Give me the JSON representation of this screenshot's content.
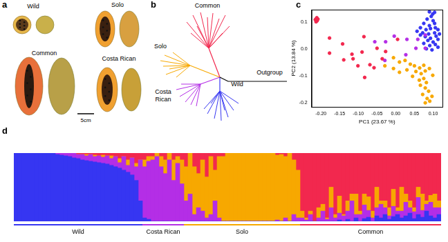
{
  "panels": {
    "a": {
      "label": "a",
      "photos": [
        {
          "label": "Wild"
        },
        {
          "label": "Solo"
        },
        {
          "label": "Common"
        },
        {
          "label": "Costa Rican"
        }
      ],
      "scale_bar": "5cm"
    },
    "b": {
      "label": "b",
      "clades": [
        {
          "label": "Common",
          "color": "#f2284e"
        },
        {
          "label": "Solo",
          "color": "#f7a800"
        },
        {
          "label": "Costa Rican",
          "color": "#b42ee6"
        },
        {
          "label": "Wild",
          "color": "#3636f2"
        },
        {
          "label": "Outgroup",
          "color": "#000000"
        }
      ]
    }
  },
  "chart_data": [
    {
      "type": "scatter",
      "title": "c",
      "x_label": "PC1 (23.67 %)",
      "y_label": "PC2 (13.84 %)",
      "xlim": [
        -0.225,
        0.125
      ],
      "xticks": [
        {
          "value": -0.2,
          "label": "-0.20"
        },
        -0.15,
        {
          "value": -0.1,
          "label": "-0.10"
        },
        -0.05,
        {
          "value": 0,
          "label": "0.00"
        },
        0.05,
        {
          "value": 0.1,
          "label": "0.10"
        }
      ],
      "ylim": [
        -0.215,
        0.145
      ],
      "yticks": [
        -0.2,
        -0.1,
        {
          "value": 0,
          "label": "0.0"
        },
        0.1
      ],
      "grid": false,
      "marker": "circle",
      "series": [
        {
          "color": "#f2284e",
          "x": [
            -0.215,
            -0.212,
            -0.21,
            -0.213,
            -0.208,
            -0.211,
            -0.177,
            -0.142,
            -0.177,
            -0.139,
            -0.114,
            -0.09,
            -0.085,
            -0.117,
            -0.058,
            -0.036,
            -0.069,
            -0.101,
            -0.083,
            -0.05,
            -0.027,
            0.005
          ],
          "values": [
            0.108,
            0.112,
            0.104,
            0.1,
            0.11,
            0.115,
            0.04,
            0.018,
            -0.016,
            -0.041,
            -0.037,
            -0.012,
            0.045,
            -0.02,
            -0.07,
            -0.037,
            -0.059,
            -0.063,
            -0.106,
            0.002,
            -0.01,
            0.035
          ]
        },
        {
          "color": "#b42ee6",
          "x": [
            -0.056,
            -0.027,
            -0.004,
            0.027,
            0.054,
            0.059,
            0.079,
            0.079,
            -0.029,
            0.03
          ],
          "values": [
            0.026,
            0.026,
            0.047,
            -0.022,
            0.002,
            0.035,
            0.051,
            0.002,
            -0.043,
            0.035
          ]
        },
        {
          "color": "#f7a800",
          "x": [
            -0.006,
            0.01,
            0.025,
            0.039,
            0.05,
            0.064,
            0.075,
            0.03,
            0.054,
            0.068,
            0.079,
            0.045,
            0.063,
            0.075,
            0.082,
            0.066,
            0.079,
            0.088,
            0.072,
            0.084,
            0.079,
            0.091,
            0.097,
            -0.006,
            0.01,
            -0.029,
            0.099,
            0.09
          ],
          "values": [
            -0.033,
            -0.049,
            -0.043,
            -0.057,
            -0.063,
            -0.071,
            -0.061,
            -0.078,
            -0.084,
            -0.092,
            -0.082,
            -0.102,
            -0.116,
            -0.11,
            -0.125,
            -0.135,
            -0.145,
            -0.157,
            -0.169,
            -0.184,
            -0.2,
            -0.194,
            -0.176,
            -0.073,
            -0.087,
            -0.063,
            -0.098,
            -0.073
          ]
        },
        {
          "color": "#3636f2",
          "x": [
            0.09,
            0.099,
            0.104,
            0.095,
            0.084,
            0.1,
            0.075,
            0.09,
            0.104,
            0.066,
            0.081,
            0.093,
            0.106,
            0.057,
            0.072,
            0.088,
            0.104,
            0.113,
            0.079,
            0.093,
            0.108,
            0.066,
            0.086,
            0.1,
            0.113,
            0.075,
            0.091,
            0.106,
            0.082,
            0.097,
            0.113,
            0.117
          ],
          "values": [
            0.137,
            0.129,
            0.135,
            0.12,
            0.11,
            0.104,
            0.094,
            0.086,
            0.094,
            0.078,
            0.071,
            0.075,
            0.078,
            0.065,
            0.059,
            0.055,
            0.059,
            0.071,
            0.045,
            0.039,
            0.047,
            0.051,
            0.031,
            0.025,
            0.035,
            0.02,
            0.012,
            0.016,
            0,
            -0.004,
            0.006,
            0.055
          ]
        }
      ]
    },
    {
      "type": "bar",
      "title": "d",
      "stacked": true,
      "tick_labels": false,
      "grid": false,
      "ylim": [
        0,
        1
      ],
      "groups": [
        {
          "name": "Wild",
          "count": 31,
          "color": "#3636f2"
        },
        {
          "name": "Costa Rican",
          "count": 10,
          "color": "#b42ee6"
        },
        {
          "name": "Solo",
          "count": 28,
          "color": "#f7a800"
        },
        {
          "name": "Common",
          "count": 34,
          "color": "#f2284e"
        }
      ],
      "series": [
        {
          "color": "#3636f2",
          "values": [
            1,
            1,
            1,
            1,
            1,
            1,
            1,
            1,
            1,
            1,
            0.98,
            0.97,
            0.96,
            0.95,
            0.93,
            0.92,
            0.9,
            0.89,
            0.88,
            0.87,
            0.86,
            0.85,
            0.84,
            0.82,
            0.8,
            0.78,
            0.75,
            0.72,
            0.68,
            0.6,
            0.3,
            0.05,
            0.03,
            0,
            0,
            0,
            0,
            0,
            0,
            0,
            0,
            0,
            0,
            0,
            0,
            0,
            0,
            0,
            0,
            0,
            0,
            0,
            0,
            0,
            0,
            0,
            0,
            0,
            0,
            0,
            0,
            0,
            0,
            0,
            0,
            0,
            0,
            0,
            0,
            0,
            0,
            0,
            0,
            0,
            0,
            0,
            0,
            0,
            0.02,
            0,
            0.03,
            0,
            0.05,
            0,
            0.04,
            0.06,
            0,
            0.08,
            0.05,
            0.1,
            0.03,
            0.07,
            0.1,
            0.05,
            0.08,
            0.12,
            0.04,
            0.1,
            0.06,
            0.15,
            0.08,
            0.05,
            0.1
          ]
        },
        {
          "color": "#b42ee6",
          "values": [
            0,
            0,
            0,
            0,
            0,
            0,
            0,
            0,
            0,
            0,
            0.02,
            0.03,
            0.04,
            0.05,
            0.07,
            0.06,
            0.08,
            0.07,
            0.1,
            0.08,
            0.1,
            0.09,
            0.12,
            0.1,
            0.15,
            0.08,
            0.2,
            0.1,
            0.25,
            0.2,
            0.6,
            0.75,
            0.85,
            0.9,
            0.95,
            0.8,
            0.7,
            0.9,
            0.6,
            0.85,
            0.55,
            0.3,
            0.4,
            0.1,
            0.2,
            0.15,
            0.05,
            0.1,
            0.3,
            0.05,
            0,
            0,
            0,
            0,
            0,
            0,
            0,
            0,
            0,
            0,
            0,
            0,
            0,
            0.02,
            0,
            0.05,
            0,
            0.1,
            0.05,
            0.05,
            0.02,
            0.1,
            0,
            0.05,
            0.15,
            0.03,
            0.2,
            0.05,
            0.1,
            0.08,
            0.12,
            0.3,
            0.05,
            0.1,
            0.2,
            0.1,
            0.05,
            0.12,
            0.2,
            0.1,
            0.05,
            0.15,
            0.05,
            0.1,
            0.2,
            0.08,
            0.1,
            0.25,
            0.1,
            0.1,
            0.2,
            0.15,
            0.1
          ]
        },
        {
          "color": "#f7a800",
          "values": [
            0,
            0,
            0,
            0,
            0,
            0,
            0,
            0,
            0,
            0,
            0,
            0,
            0,
            0,
            0,
            0,
            0,
            0.02,
            0,
            0.02,
            0,
            0.03,
            0,
            0.04,
            0,
            0.06,
            0,
            0.08,
            0,
            0.05,
            0,
            0.1,
            0.07,
            0.05,
            0.05,
            0.15,
            0.2,
            0.1,
            0.3,
            0.1,
            0.35,
            0.5,
            0.6,
            0.7,
            0.5,
            0.75,
            0.6,
            0.85,
            0.45,
            0.9,
            0.95,
            1,
            1,
            1,
            1,
            1,
            1,
            1,
            1,
            1,
            1,
            1,
            1,
            0.95,
            0.98,
            0.9,
            1,
            0.8,
            0.7,
            0.1,
            0.03,
            0.05,
            0,
            0.15,
            0.1,
            0.02,
            0.3,
            0.05,
            0.25,
            0.02,
            0.15,
            0.1,
            0.3,
            0.05,
            0.16,
            0.2,
            0.1,
            0.3,
            0.05,
            0.1,
            0.12,
            0.25,
            0.05,
            0.35,
            0.12,
            0.1,
            0.06,
            0.15,
            0.24,
            0.05,
            0.1,
            0.2,
            0.1
          ]
        },
        {
          "color": "#f2284e",
          "values": [
            0,
            0,
            0,
            0,
            0,
            0,
            0,
            0,
            0,
            0,
            0,
            0,
            0,
            0,
            0,
            0.02,
            0.02,
            0.02,
            0.02,
            0.03,
            0.04,
            0.03,
            0.04,
            0.04,
            0.05,
            0.08,
            0.05,
            0.1,
            0.07,
            0.15,
            0.1,
            0.1,
            0.05,
            0.05,
            0,
            0.05,
            0.1,
            0,
            0.1,
            0.05,
            0.1,
            0.2,
            0,
            0.2,
            0.3,
            0.1,
            0.35,
            0.05,
            0.25,
            0.05,
            0.05,
            0,
            0,
            0,
            0,
            0,
            0,
            0,
            0,
            0,
            0,
            0,
            0,
            0.03,
            0.02,
            0.05,
            0,
            0.1,
            0.25,
            0.85,
            0.95,
            0.85,
            1,
            0.8,
            0.75,
            0.95,
            0.5,
            0.9,
            0.63,
            0.9,
            0.7,
            0.6,
            0.6,
            0.85,
            0.6,
            0.64,
            0.85,
            0.5,
            0.7,
            0.7,
            0.8,
            0.53,
            0.8,
            0.5,
            0.6,
            0.7,
            0.8,
            0.5,
            0.6,
            0.7,
            0.62,
            0.6,
            0.7
          ]
        }
      ]
    }
  ]
}
